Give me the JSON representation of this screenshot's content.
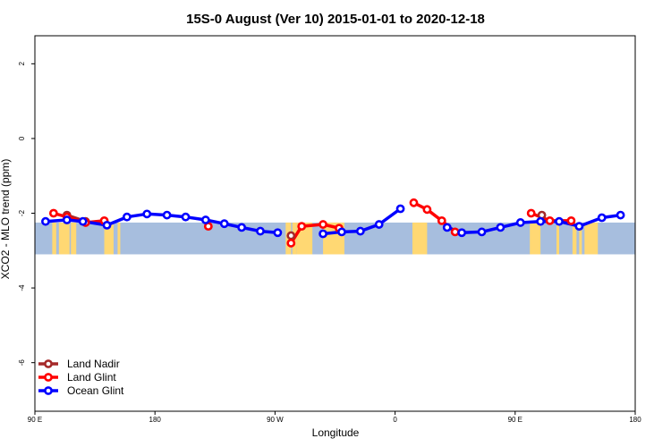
{
  "chart_data": {
    "type": "line",
    "title": "15S-0 August (Ver 10)   2015-01-01 to 2020-12-18",
    "xlabel": "Longitude",
    "ylabel": "XCO2 - MLO trend (ppm)",
    "xlim": [
      90,
      540
    ],
    "ylim": [
      -7.3,
      2.75
    ],
    "x_ticks": [
      {
        "value": 90,
        "label": "90 E"
      },
      {
        "value": 180,
        "label": "180"
      },
      {
        "value": 270,
        "label": "90 W"
      },
      {
        "value": 360,
        "label": "0"
      },
      {
        "value": 450,
        "label": "90 E"
      },
      {
        "value": 540,
        "label": "180"
      }
    ],
    "y_ticks": [
      {
        "value": 2,
        "label": "2"
      },
      {
        "value": 0,
        "label": "0"
      },
      {
        "value": -2,
        "label": "-2"
      },
      {
        "value": -4,
        "label": "-4"
      },
      {
        "value": -6,
        "label": "-6"
      }
    ],
    "map_band": {
      "y_top": -2.25,
      "y_bottom": -3.1,
      "ocean_color": "#a7bede",
      "land_color": "#ffd873"
    },
    "land_spans": [
      [
        103,
        106
      ],
      [
        108,
        116
      ],
      [
        117,
        121
      ],
      [
        142,
        149
      ],
      [
        152,
        154
      ],
      [
        278,
        282
      ],
      [
        283,
        286
      ],
      [
        286,
        298
      ],
      [
        306,
        322
      ],
      [
        373,
        384
      ],
      [
        461,
        469
      ],
      [
        481,
        483
      ],
      [
        493,
        496
      ],
      [
        498,
        500
      ],
      [
        502,
        512
      ]
    ],
    "legend_position": "bottom-left",
    "series": [
      {
        "name": "Land Nadir",
        "color": "#a52a2a",
        "segments": [
          [
            [
              114,
              -2.05
            ],
            [
              128,
              -2.22
            ]
          ],
          [
            [
              282,
              -2.6
            ]
          ],
          [
            [
              470,
              -2.05
            ]
          ]
        ]
      },
      {
        "name": "Land Glint",
        "color": "#ff0000",
        "segments": [
          [
            [
              104,
              -2.0
            ],
            [
              114,
              -2.1
            ],
            [
              128,
              -2.25
            ],
            [
              142,
              -2.2
            ]
          ],
          [
            [
              220,
              -2.35
            ]
          ],
          [
            [
              282,
              -2.8
            ],
            [
              290,
              -2.35
            ],
            [
              306,
              -2.3
            ],
            [
              318,
              -2.4
            ]
          ],
          [
            [
              374,
              -1.72
            ],
            [
              384,
              -1.9
            ],
            [
              395,
              -2.2
            ],
            [
              405,
              -2.5
            ]
          ],
          [
            [
              462,
              -2.0
            ],
            [
              476,
              -2.2
            ],
            [
              492,
              -2.2
            ]
          ]
        ]
      },
      {
        "name": "Ocean Glint",
        "color": "#0000ff",
        "segments": [
          [
            [
              98,
              -2.22
            ],
            [
              114,
              -2.18
            ],
            [
              126,
              -2.22
            ],
            [
              144,
              -2.32
            ],
            [
              159,
              -2.1
            ],
            [
              174,
              -2.02
            ],
            [
              189,
              -2.05
            ],
            [
              203,
              -2.1
            ],
            [
              218,
              -2.18
            ],
            [
              232,
              -2.28
            ],
            [
              245,
              -2.38
            ],
            [
              259,
              -2.48
            ],
            [
              272,
              -2.52
            ]
          ],
          [
            [
              306,
              -2.55
            ],
            [
              320,
              -2.5
            ],
            [
              334,
              -2.48
            ],
            [
              348,
              -2.3
            ],
            [
              364,
              -1.88
            ]
          ],
          [
            [
              399,
              -2.38
            ],
            [
              410,
              -2.52
            ],
            [
              425,
              -2.5
            ],
            [
              439,
              -2.38
            ],
            [
              454,
              -2.25
            ],
            [
              469,
              -2.22
            ],
            [
              483,
              -2.22
            ],
            [
              498,
              -2.35
            ],
            [
              515,
              -2.12
            ],
            [
              529,
              -2.05
            ]
          ]
        ]
      }
    ]
  }
}
